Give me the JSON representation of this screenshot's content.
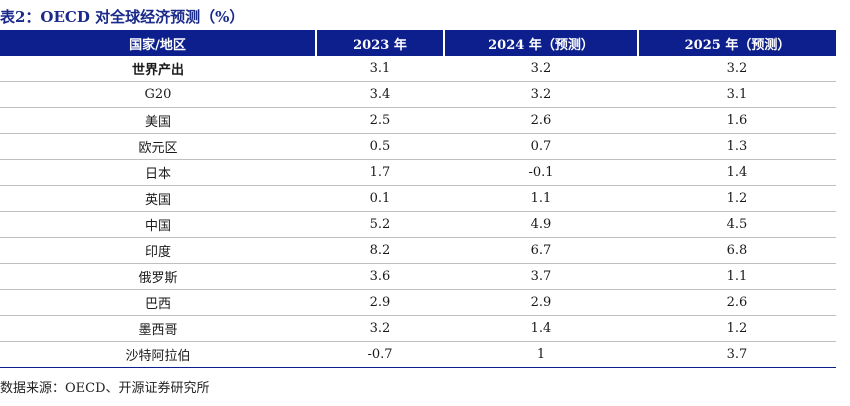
{
  "title": "表2：OECD 对全球经济预测（%）",
  "source": "数据来源：OECD、开源证券研究所",
  "chart_data": {
    "type": "table",
    "title": "表2：OECD 对全球经济预测（%）",
    "columns": [
      "国家/地区",
      "2023 年",
      "2024 年（预测）",
      "2025 年（预测）"
    ],
    "rows": [
      {
        "name": "世界产出",
        "values": [
          "3.1",
          "3.2",
          "3.2"
        ],
        "bold": true
      },
      {
        "name": "G20",
        "values": [
          "3.4",
          "3.2",
          "3.1"
        ]
      },
      {
        "name": "美国",
        "values": [
          "2.5",
          "2.6",
          "1.6"
        ]
      },
      {
        "name": "欧元区",
        "values": [
          "0.5",
          "0.7",
          "1.3"
        ]
      },
      {
        "name": "日本",
        "values": [
          "1.7",
          "-0.1",
          "1.4"
        ]
      },
      {
        "name": "英国",
        "values": [
          "0.1",
          "1.1",
          "1.2"
        ]
      },
      {
        "name": "中国",
        "values": [
          "5.2",
          "4.9",
          "4.5"
        ]
      },
      {
        "name": "印度",
        "values": [
          "8.2",
          "6.7",
          "6.8"
        ]
      },
      {
        "name": "俄罗斯",
        "values": [
          "3.6",
          "3.7",
          "1.1"
        ]
      },
      {
        "name": "巴西",
        "values": [
          "2.9",
          "2.9",
          "2.6"
        ]
      },
      {
        "name": "墨西哥",
        "values": [
          "3.2",
          "1.4",
          "1.2"
        ]
      },
      {
        "name": "沙特阿拉伯",
        "values": [
          "-0.7",
          "1",
          "3.7"
        ]
      }
    ],
    "colors": {
      "header_bg": "#0c1f8c",
      "header_text": "#ffffff",
      "title": "#1a2a8a"
    }
  }
}
